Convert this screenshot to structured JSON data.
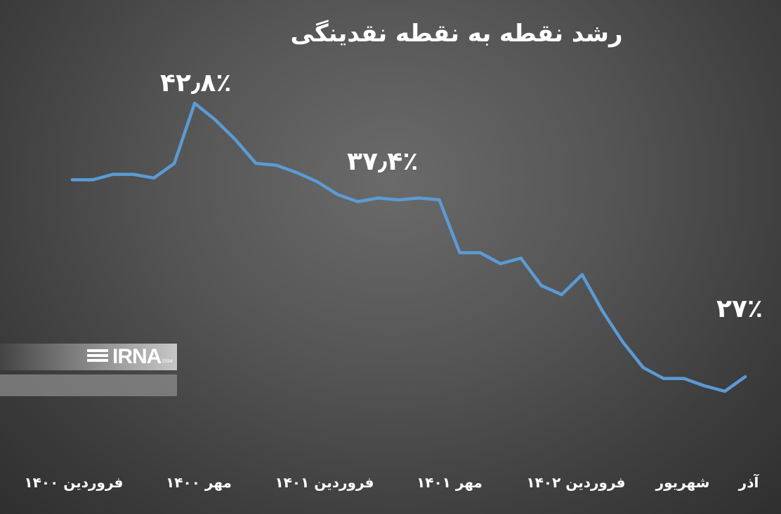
{
  "chart_data": {
    "type": "line",
    "title": "رشد نقطه به نقطه نقدینگی",
    "xlabel": "",
    "ylabel": "",
    "ylim": [
      25,
      45
    ],
    "grid": false,
    "x_tick_labels": [
      "فروردین ۱۴۰۰",
      "مهر ۱۴۰۰",
      "فروردین ۱۴۰۱",
      "مهر ۱۴۰۱",
      "فروردین ۱۴۰۲",
      "شهریور",
      "آذر"
    ],
    "x_tick_indices": [
      0,
      6,
      12,
      18,
      24,
      29,
      32
    ],
    "series": [
      {
        "color": "#5b9bd5",
        "values": [
          38.6,
          38.6,
          38.9,
          38.9,
          38.7,
          39.5,
          42.8,
          41.9,
          40.8,
          39.5,
          39.4,
          39.0,
          38.5,
          37.8,
          37.4,
          37.6,
          37.5,
          37.6,
          37.5,
          34.6,
          34.6,
          34.0,
          34.3,
          32.8,
          32.3,
          33.4,
          31.4,
          29.7,
          28.3,
          27.7,
          27.7,
          27.3,
          27.0,
          27.8
        ]
      }
    ],
    "annotations": [
      {
        "label": "۴۲٫۸٪",
        "index": 6
      },
      {
        "label": "۳۷٫۴٪",
        "index": 14
      },
      {
        "label": "۲۷٪",
        "index": 32
      }
    ]
  },
  "watermark": {
    "logo_text": "IRNA",
    "logo_small": "1934"
  }
}
